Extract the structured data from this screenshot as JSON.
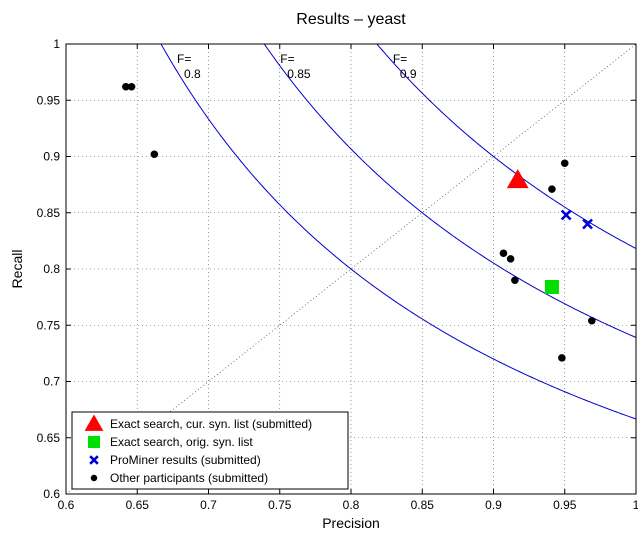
{
  "chart_data": {
    "type": "scatter",
    "title": "Results – yeast",
    "xlabel": "Precision",
    "ylabel": "Recall",
    "xlim": [
      0.6,
      1.0
    ],
    "ylim": [
      0.6,
      1.0
    ],
    "x_ticks": [
      "0.6",
      "0.65",
      "0.7",
      "0.75",
      "0.8",
      "0.85",
      "0.9",
      "0.95",
      "1"
    ],
    "y_ticks": [
      "0.6",
      "0.65",
      "0.7",
      "0.75",
      "0.8",
      "0.85",
      "0.9",
      "0.95",
      "1"
    ],
    "grid": true,
    "legend_position": "bottom-left",
    "f_curves": [
      {
        "f": 0.8,
        "label_line1": "F=",
        "label_line2": "0.8"
      },
      {
        "f": 0.85,
        "label_line1": "F=",
        "label_line2": "0.85"
      },
      {
        "f": 0.9,
        "label_line1": "F=",
        "label_line2": "0.9"
      }
    ],
    "curve_color": "#0000cc",
    "diagonal": true,
    "series": [
      {
        "name": "Exact search, cur. syn. list (submitted)",
        "marker": "triangle",
        "color": "#ff0000",
        "points": [
          [
            0.917,
            0.879
          ]
        ]
      },
      {
        "name": "Exact search, orig. syn. list",
        "marker": "square",
        "color": "#00dd00",
        "points": [
          [
            0.941,
            0.784
          ]
        ]
      },
      {
        "name": "ProMiner results (submitted)",
        "marker": "x",
        "color": "#0000dd",
        "points": [
          [
            0.951,
            0.848
          ],
          [
            0.966,
            0.84
          ]
        ]
      },
      {
        "name": "Other participants (submitted)",
        "marker": "dot",
        "color": "#000000",
        "points": [
          [
            0.642,
            0.962
          ],
          [
            0.646,
            0.962
          ],
          [
            0.662,
            0.902
          ],
          [
            0.907,
            0.814
          ],
          [
            0.912,
            0.809
          ],
          [
            0.915,
            0.79
          ],
          [
            0.941,
            0.871
          ],
          [
            0.95,
            0.894
          ],
          [
            0.969,
            0.754
          ],
          [
            0.948,
            0.721
          ]
        ]
      }
    ]
  }
}
